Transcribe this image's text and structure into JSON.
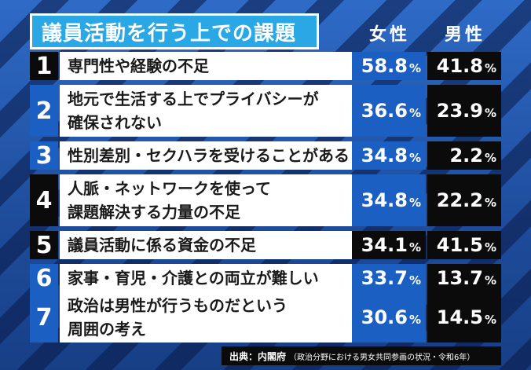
{
  "title": "議員活動を行う上での課題",
  "columns": {
    "female": "女性",
    "male": "男性"
  },
  "rows": [
    {
      "num": "1",
      "label": "専門性や経験の不足",
      "female": "58.8",
      "male": "41.8"
    },
    {
      "num": "2",
      "label": "地元で生活する上でプライバシーが\n確保されない",
      "female": "36.6",
      "male": "23.9"
    },
    {
      "num": "3",
      "label": "性別差別・セクハラを受けることがある",
      "female": "34.8",
      "male": "2.2"
    },
    {
      "num": "4",
      "label": "人脈・ネットワークを使って\n課題解決する力量の不足",
      "female": "34.8",
      "male": "22.2"
    },
    {
      "num": "5",
      "label": "議員活動に係る資金の不足",
      "female": "34.1",
      "male": "41.5"
    },
    {
      "num": "6",
      "label": "家事・育児・介護との両立が難しい",
      "female": "33.7",
      "male": "13.7"
    },
    {
      "num": "7",
      "label": "政治は男性が行うものだという\n周囲の考え",
      "female": "30.6",
      "male": "14.5"
    }
  ],
  "unit": "%",
  "source": {
    "main": "出典：内閣府",
    "sub": "（政治分野における男女共同参画の状況・令和6年）"
  }
}
